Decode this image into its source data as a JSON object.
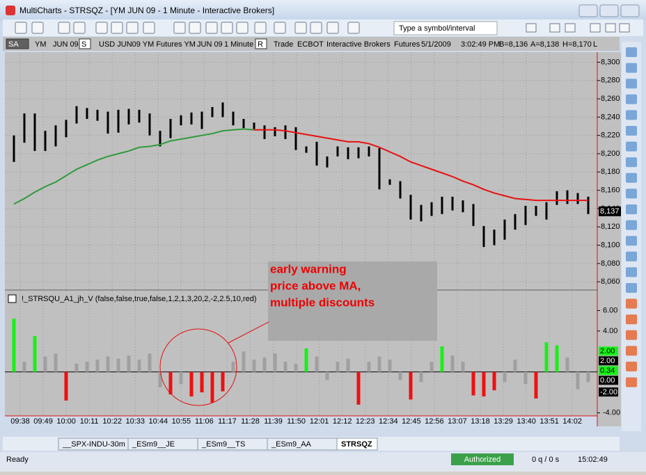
{
  "window": {
    "title": "MultiCharts - STRSQZ - [YM  JUN 09 - 1 Minute - Interactive Brokers]",
    "symbol_box": "Type a symbol/interval"
  },
  "info_bar": [
    "SA",
    "YM",
    "JUN 09",
    "S",
    "USD JUN09 YM Futures YM",
    "JUN 09",
    "1 Minute",
    "R",
    "Trade",
    "ECBOT",
    "Interactive Brokers",
    "Futures",
    "5/1/2009",
    "3:02:49 PM",
    "B=8,136",
    "A=8,138",
    "H=8,170",
    "L"
  ],
  "chart_data": [
    {
      "type": "ohlc",
      "high": [
        8220,
        8244,
        8244,
        8225,
        8231,
        8237,
        8252,
        8250,
        8248,
        8246,
        8248,
        8249,
        8248,
        8244,
        8225,
        8238,
        8242,
        8245,
        8246,
        8251,
        8256,
        8246,
        8238,
        8234,
        8231,
        8229,
        8231,
        8229,
        8208,
        8213,
        8197,
        8208,
        8207,
        8207,
        8208,
        8206,
        8172,
        8170,
        8155,
        8144,
        8147,
        8153,
        8153,
        8149,
        8145,
        8121,
        8117,
        8128,
        8134,
        8143,
        8143,
        8147,
        8159,
        8160,
        8157,
        8153
      ],
      "low": [
        8191,
        8212,
        8203,
        8203,
        8208,
        8218,
        8233,
        8238,
        8236,
        8222,
        8223,
        8232,
        8234,
        8220,
        8208,
        8217,
        8231,
        8232,
        8227,
        8240,
        8240,
        8231,
        8228,
        8227,
        8216,
        8219,
        8216,
        8204,
        8201,
        8187,
        8185,
        8197,
        8194,
        8195,
        8197,
        8161,
        8166,
        8151,
        8128,
        8126,
        8132,
        8134,
        8138,
        8136,
        8121,
        8098,
        8100,
        8106,
        8117,
        8122,
        8132,
        8128,
        8144,
        8145,
        8145,
        8134
      ],
      "bar_color": "#000000",
      "ma_up": [
        8145,
        8151,
        8158,
        8164,
        8169,
        8176,
        8183,
        8188,
        8193,
        8197,
        8200,
        8203,
        8207,
        8208,
        8210,
        8214,
        8216,
        8218,
        8220,
        8222,
        8225,
        8226,
        8227,
        8226,
        null,
        null,
        null,
        null,
        null,
        null,
        null,
        null,
        null,
        null,
        null,
        null,
        null,
        null,
        null,
        null,
        null,
        null,
        null,
        null,
        null,
        null,
        null,
        null,
        null,
        null,
        null,
        null,
        null,
        null,
        null,
        null
      ],
      "ma_down": [
        null,
        null,
        null,
        null,
        null,
        null,
        null,
        null,
        null,
        null,
        null,
        null,
        null,
        null,
        null,
        null,
        null,
        null,
        null,
        null,
        null,
        null,
        null,
        8226,
        8226,
        8226,
        8225,
        8223,
        8221,
        8219,
        8217,
        8215,
        8213,
        8213,
        8211,
        8207,
        8202,
        8197,
        8191,
        8187,
        8183,
        8179,
        8175,
        8170,
        8166,
        8161,
        8157,
        8154,
        8151,
        8150,
        8149,
        8149,
        8149,
        8149,
        8149,
        8149
      ],
      "ma_up_color": "#2e9a3c",
      "ma_down_color": "#e81010",
      "ylim": [
        8051,
        8311
      ],
      "yticks": [
        {
          "value": 8060,
          "label": "8,060"
        },
        {
          "value": 8080,
          "label": "8,080"
        },
        {
          "value": 8100,
          "label": "8,100"
        },
        {
          "value": 8120,
          "label": "8,120"
        },
        {
          "value": 8140,
          "label": "8,140"
        },
        {
          "value": 8160,
          "label": "8,160"
        },
        {
          "value": 8180,
          "label": "8,180"
        },
        {
          "value": 8200,
          "label": "8,200"
        },
        {
          "value": 8220,
          "label": "8,220"
        },
        {
          "value": 8240,
          "label": "8,240"
        },
        {
          "value": 8260,
          "label": "8,260"
        },
        {
          "value": 8280,
          "label": "8,280"
        },
        {
          "value": 8300,
          "label": "8,300"
        }
      ],
      "last_price": {
        "value": 8137,
        "label": "8,137"
      },
      "grid": true,
      "xtick_labels": [
        "09:38",
        "09:49",
        "10:00",
        "10:11",
        "10:22",
        "10:33",
        "10:44",
        "10:55",
        "11:06",
        "11:17",
        "11:28",
        "11:39",
        "11:50",
        "12:01",
        "12:12",
        "12:23",
        "12:34",
        "12:45",
        "12:56",
        "13:07",
        "13:18",
        "13:29",
        "13:40",
        "13:51",
        "14:02"
      ]
    },
    {
      "type": "bar",
      "title": "!_STRSQU_A1_jh_V  (false,false,true,false,1,2,1,3,20,2,-2,2.5,10,red)",
      "values": [
        5.2,
        1.0,
        3.5,
        1.5,
        1.8,
        -2.8,
        0.8,
        1.0,
        1.2,
        1.5,
        1.3,
        1.6,
        1.2,
        1.8,
        -1.5,
        -2.2,
        -1.2,
        -2.4,
        -2.0,
        -3.0,
        -1.9,
        1.0,
        2.0,
        1.2,
        1.4,
        1.8,
        1.0,
        0.8,
        2.3,
        1.5,
        -0.8,
        1.0,
        1.3,
        -3.2,
        1.0,
        1.5,
        1.2,
        -0.8,
        -2.7,
        -1.0,
        1.0,
        2.5,
        1.6,
        1.0,
        -2.3,
        -2.4,
        -1.8,
        -1.0,
        1.2,
        -1.2,
        -2.6,
        2.9,
        2.6,
        1.4,
        -1.7,
        -1.0
      ],
      "bar_colors": [
        "#18f018",
        "#a0a0a0",
        "#18f018",
        "#a0a0a0",
        "#a0a0a0",
        "#ee1010",
        "#a0a0a0",
        "#a0a0a0",
        "#a0a0a0",
        "#a0a0a0",
        "#a0a0a0",
        "#a0a0a0",
        "#a0a0a0",
        "#a0a0a0",
        "#a0a0a0",
        "#ee1010",
        "#a0a0a0",
        "#ee1010",
        "#ee1010",
        "#ee1010",
        "#ee1010",
        "#a0a0a0",
        "#a0a0a0",
        "#a0a0a0",
        "#a0a0a0",
        "#a0a0a0",
        "#a0a0a0",
        "#a0a0a0",
        "#18f018",
        "#a0a0a0",
        "#a0a0a0",
        "#a0a0a0",
        "#a0a0a0",
        "#ee1010",
        "#a0a0a0",
        "#a0a0a0",
        "#a0a0a0",
        "#a0a0a0",
        "#ee1010",
        "#a0a0a0",
        "#a0a0a0",
        "#18f018",
        "#a0a0a0",
        "#a0a0a0",
        "#ee1010",
        "#ee1010",
        "#ee1010",
        "#a0a0a0",
        "#a0a0a0",
        "#a0a0a0",
        "#ee1010",
        "#18f018",
        "#18f018",
        "#a0a0a0",
        "#a0a0a0",
        "#a0a0a0"
      ],
      "ylim": [
        -4.3,
        7.8
      ],
      "yticks": [
        {
          "value": 6,
          "label": "6.00"
        },
        {
          "value": 4,
          "label": "4.00"
        },
        {
          "value": -4,
          "label": "-4.00"
        }
      ],
      "markers": [
        {
          "value": 2,
          "label": "2.00",
          "color": "#18f018"
        },
        {
          "value": 2,
          "label": "2.00",
          "color": "#000000"
        },
        {
          "value": 0.34,
          "label": "0.34",
          "color": "#18f018"
        },
        {
          "value": 0,
          "label": "0.00",
          "color": "#000000"
        },
        {
          "value": -2,
          "label": "-2.00",
          "color": "#000000"
        }
      ]
    }
  ],
  "annotation": {
    "lines": [
      "early warning",
      "price above MA,",
      "multiple discounts"
    ]
  },
  "tabs": [
    "__SPX-INDU-30m",
    "_ESm9__JE",
    "_ESm9__TS",
    "_ESm9_AA",
    "STRSQZ"
  ],
  "status": {
    "left": "Ready",
    "auth": "Authorized",
    "quotes": "0 q / 0 s",
    "time": "15:02:49"
  }
}
